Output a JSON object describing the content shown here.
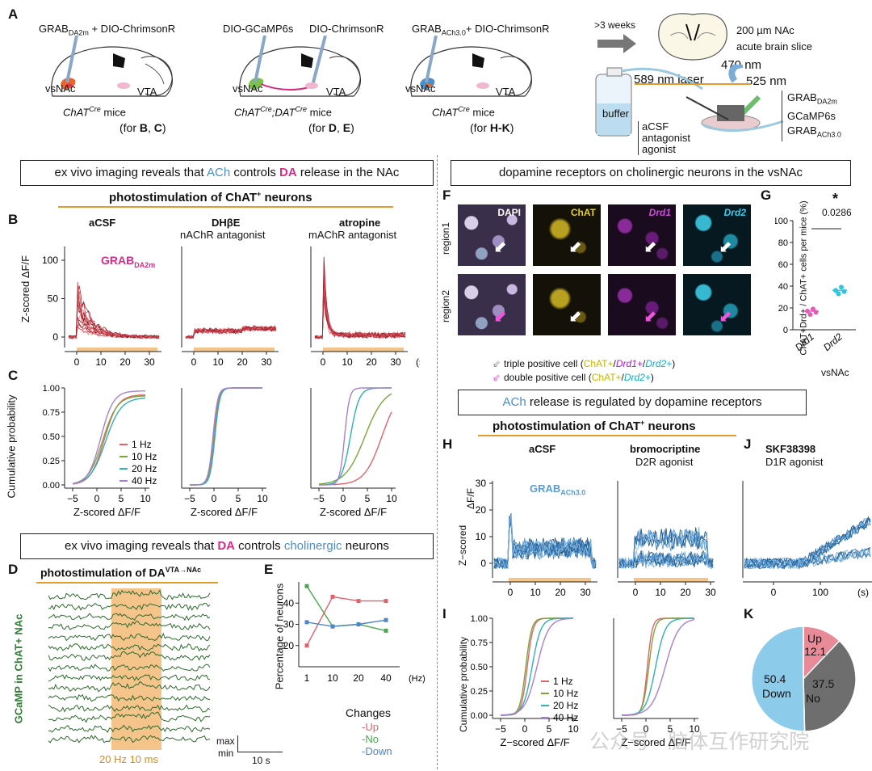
{
  "panelA": {
    "letter": "A",
    "mouse1": {
      "construct_main": "GRAB",
      "construct_sub": "DA2m",
      "construct_rest": " + DIO-ChrimsonR",
      "region": "vsNAc",
      "vta": "VTA",
      "line_main": "ChAT",
      "line_sup": "Cre",
      "line_rest": " mice",
      "note_pre": "(for ",
      "note_b": "B",
      "note_mid": ", ",
      "note_c": "C",
      "note_post": ")"
    },
    "mouse2": {
      "construct_a": "DIO-GCaMP6s",
      "construct_b": "DIO-ChrimsonR",
      "region": "vsNAc",
      "vta": "VTA",
      "line_a": "ChAT",
      "line_a_sup": "Cre",
      "line_sep": ";",
      "line_b": "DAT",
      "line_b_sup": "Cre",
      "line_rest": " mice",
      "note_pre": "(for ",
      "note_b": "D",
      "note_mid": ", ",
      "note_c": "E",
      "note_post": ")"
    },
    "mouse3": {
      "construct_main": "GRAB",
      "construct_sub": "ACh3.0",
      "construct_rest": "+ DIO-ChrimsonR",
      "region": "vsNAc",
      "vta": "VTA",
      "line_main": "ChAT",
      "line_sup": "Cre",
      "line_rest": " mice",
      "note_pre": "(for ",
      "note_b": "H-K",
      "note_post": ")"
    },
    "weeks": ">3 weeks",
    "slice_line1": "200 µm NAc",
    "slice_line2": "acute brain slice",
    "laser": "589 nm laser",
    "nm470": "470 nm",
    "nm525": "525 nm",
    "buffer": "buffer",
    "aCSF": "aCSF",
    "antagonist": "antagonist",
    "agonist": "agonist",
    "sensor1_main": "GRAB",
    "sensor1_sub": "DA2m",
    "sensor2": "GCaMP6s",
    "sensor3_main": "GRAB",
    "sensor3_sub": "ACh3.0"
  },
  "boxes": {
    "b1_pre": "ex vivo imaging reveals that ",
    "b1_ach": "ACh",
    "b1_mid": " controls ",
    "b1_da": "DA",
    "b1_post": " release in the NAc",
    "b2": "dopamine receptors on cholinergic neurons in the vsNAc",
    "b3_pre": "",
    "b3_ach": "ACh",
    "b3_post": " release is regulated by dopamine receptors",
    "b4_pre": "ex vivo imaging reveals that ",
    "b4_da": "DA",
    "b4_mid": " controls ",
    "b4_chol": "cholinergic",
    "b4_post": " neurons"
  },
  "photostim": {
    "title_pre": "photostimulation of ChAT",
    "title_sup": "+",
    "title_post": " neurons"
  },
  "panelB": {
    "letter": "B",
    "cond1": "aCSF",
    "cond2": "DHβE",
    "cond2_sub": "nAChR antagonist",
    "cond3": "atropine",
    "cond3_sub": "mAChR antagonist",
    "ylabel": "Z-scored ΔF/F",
    "sensor_main": "GRAB",
    "sensor_sub": "DA2m",
    "yticks": [
      "0",
      "50",
      "100"
    ],
    "xticks": [
      "0",
      "10",
      "20",
      "30"
    ],
    "xunit": "(s)"
  },
  "panelC": {
    "letter": "C",
    "ylabel": "Cumulative probability",
    "xlabel": "Z-scored ΔF/F",
    "yticks": [
      "0.00",
      "0.25",
      "0.50",
      "0.75",
      "1.00"
    ],
    "xticks": [
      "−5",
      "0",
      "5",
      "10"
    ],
    "legend": [
      {
        "label": "1 Hz",
        "color": "#e2626a"
      },
      {
        "label": "10 Hz",
        "color": "#7ca53a"
      },
      {
        "label": "20 Hz",
        "color": "#2eb0b7"
      },
      {
        "label": "40 Hz",
        "color": "#a97fd0"
      }
    ]
  },
  "panelD": {
    "letter": "D",
    "title_pre": "photostimulation of DA",
    "title_sup": "VTA→NAc",
    "ylabel": "GCaMP in ChAT+ NAc",
    "stim": "20 Hz 10 ms",
    "max": "max",
    "min": "min",
    "scale": "10 s"
  },
  "panelE": {
    "letter": "E",
    "ylabel": "Percentage of neurons",
    "xunit": "(Hz)",
    "legend_title": "Changes",
    "chart_data": {
      "type": "line",
      "categories": [
        "1",
        "10",
        "20",
        "40"
      ],
      "ylim": [
        10,
        50
      ],
      "yticks": [
        "20",
        "30",
        "40"
      ],
      "series": [
        {
          "name": "-Up",
          "color": "#e2626a",
          "values": [
            20,
            43,
            41,
            41
          ]
        },
        {
          "name": "-No",
          "color": "#49a84c",
          "values": [
            48,
            29,
            30,
            27
          ]
        },
        {
          "name": "-Down",
          "color": "#4f86c6",
          "values": [
            31,
            29,
            30,
            32
          ]
        }
      ]
    }
  },
  "panelF": {
    "letter": "F",
    "row1": "region1",
    "row2": "region2",
    "cols": [
      "DAPI",
      "ChAT",
      "Drd1",
      "Drd2"
    ],
    "legend1_pre": "triple positive cell (",
    "legend1_a": "ChAT+",
    "legend1_s1": "/",
    "legend1_b": "Drd1+",
    "legend1_s2": "/",
    "legend1_c": "Drd2+",
    "legend1_post": ")",
    "legend2_pre": "double positive cell (",
    "legend2_a": "ChAT+",
    "legend2_s": "/",
    "legend2_c": "Drd2+",
    "legend2_post": ")"
  },
  "panelG": {
    "letter": "G",
    "star": "*",
    "pval": "0.0286",
    "ylabel": "ChAT+Drd+ / ChAT+ cells per mice (%)",
    "yticks": [
      "0",
      "20",
      "40",
      "60",
      "80",
      "100"
    ],
    "xlabel": "vsNAc",
    "chart_data": {
      "type": "scatter",
      "categories": [
        "Drd1",
        "Drd2"
      ],
      "ylim": [
        0,
        100
      ],
      "series": [
        {
          "name": "Drd1",
          "color": "#e05fb8",
          "values": [
            17,
            14,
            19,
            16
          ],
          "mean": 17
        },
        {
          "name": "Drd2",
          "color": "#2bc6e0",
          "values": [
            36,
            33,
            39,
            35
          ],
          "mean": 36
        }
      ]
    }
  },
  "panelH": {
    "letter": "H",
    "cond1": "aCSF",
    "cond2": "bromocriptine",
    "cond2_sub": "D2R agonist",
    "ylabel1": "ΔF/F",
    "ylabel2": "Z−scored",
    "sensor_main": "GRAB",
    "sensor_sub": "ACh3.0",
    "yticks": [
      "0",
      "10",
      "20",
      "30"
    ],
    "xticks": [
      "0",
      "10",
      "20",
      "30"
    ]
  },
  "panelJ": {
    "letter": "J",
    "cond": "SKF38398",
    "cond_sub": "D1R agonist",
    "xticks": [
      "0",
      "100"
    ],
    "xunit": "(s)"
  },
  "panelI": {
    "letter": "I",
    "ylabel": "Cumulative probability",
    "xlabel": "Z−scored ΔF/F",
    "yticks": [
      "0.00",
      "0.25",
      "0.50",
      "0.75",
      "1.00"
    ],
    "xticks": [
      "−5",
      "0",
      "5",
      "10"
    ],
    "legend": [
      {
        "label": "1 Hz",
        "color": "#e2626a"
      },
      {
        "label": "10 Hz",
        "color": "#7ca53a"
      },
      {
        "label": "20 Hz",
        "color": "#2eb0b7"
      },
      {
        "label": "40 Hz",
        "color": "#a97fd0"
      }
    ]
  },
  "panelK": {
    "letter": "K",
    "chart_data": {
      "type": "pie",
      "slices": [
        {
          "label": "Up",
          "value": 12.1,
          "color": "#e88a98"
        },
        {
          "label": "No",
          "value": 37.5,
          "color": "#6e6e6e"
        },
        {
          "label": "Down",
          "value": 50.4,
          "color": "#8ccbea"
        }
      ]
    },
    "up_label": "Up",
    "up_val": "12.1",
    "no_val": "37.5",
    "no_label": "No",
    "down_val": "50.4",
    "down_label": "Down"
  },
  "watermark": "公众号 · 脑体互作研究院"
}
